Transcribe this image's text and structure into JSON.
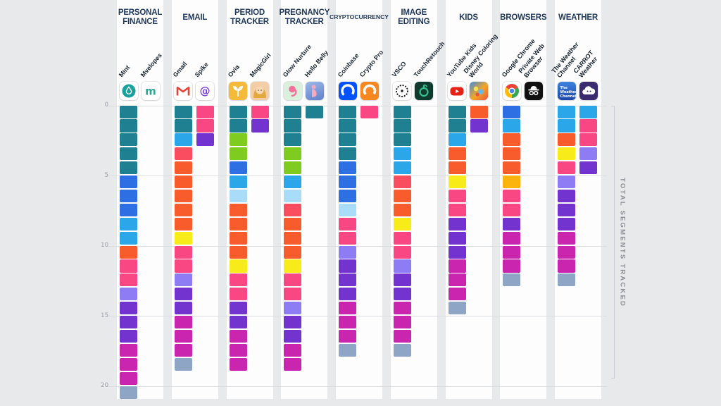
{
  "palette": {
    "teal": "#1E8090",
    "lime": "#7FCB1F",
    "royal": "#2E6FE4",
    "sky": "#2AA6E9",
    "pale": "#A8DCF8",
    "orange": "#F85C2D",
    "coral": "#FA4D60",
    "amber": "#FBB30D",
    "yellow": "#F7EC1A",
    "pink": "#F94784",
    "periwinkle": "#8D7CF3",
    "purple": "#7233CF",
    "magenta": "#CA25AE",
    "grayblue": "#8FA5C6"
  },
  "layout_colors": {
    "background": "#E8E9EB",
    "strip": "#FDFDFE",
    "gridline": "#DCDDE0",
    "title": "#20395C",
    "tick": "#9AA1AA",
    "axis_label": "#8B9097"
  },
  "axis": {
    "yticks": [
      "0",
      "5",
      "10",
      "15",
      "20"
    ],
    "right_label": "TOTAL SEGMENTS TRACKED"
  },
  "chart_data": {
    "type": "bar",
    "stacked": true,
    "unit": "1 square = 1 data segment tracked",
    "ylabel": "TOTAL SEGMENTS TRACKED",
    "ylim": [
      0,
      21
    ],
    "yticks": [
      0,
      5,
      10,
      15,
      20
    ],
    "grid": true,
    "legend": "none",
    "groups": [
      {
        "label": "PERSONAL FINANCE",
        "apps": [
          {
            "name": "Mint",
            "icon": "mint-icon",
            "total": 21,
            "segments": [
              "teal",
              "teal",
              "teal",
              "teal",
              "teal",
              "royal",
              "royal",
              "royal",
              "sky",
              "sky",
              "orange",
              "pink",
              "pink",
              "periwinkle",
              "purple",
              "purple",
              "purple",
              "magenta",
              "magenta",
              "magenta",
              "grayblue"
            ]
          },
          {
            "name": "Mvelopes",
            "icon": "mvelopes-icon",
            "total": 0,
            "segments": []
          }
        ]
      },
      {
        "label": "EMAIL",
        "apps": [
          {
            "name": "Gmail",
            "icon": "gmail-icon",
            "total": 19,
            "segments": [
              "teal",
              "teal",
              "sky",
              "coral",
              "orange",
              "orange",
              "orange",
              "orange",
              "orange",
              "yellow",
              "pink",
              "pink",
              "periwinkle",
              "purple",
              "purple",
              "magenta",
              "magenta",
              "magenta",
              "grayblue"
            ]
          },
          {
            "name": "Spike",
            "icon": "spike-icon",
            "total": 3,
            "segments": [
              "pink",
              "pink",
              "purple"
            ]
          }
        ]
      },
      {
        "label": "PERIOD TRACKER",
        "apps": [
          {
            "name": "Ovia",
            "icon": "ovia-icon",
            "total": 19,
            "segments": [
              "teal",
              "teal",
              "lime",
              "lime",
              "royal",
              "sky",
              "pale",
              "orange",
              "orange",
              "orange",
              "orange",
              "yellow",
              "pink",
              "pink",
              "purple",
              "purple",
              "magenta",
              "magenta",
              "magenta"
            ]
          },
          {
            "name": "MagicGirl",
            "icon": "magicgirl-icon",
            "total": 2,
            "segments": [
              "pink",
              "purple"
            ]
          }
        ]
      },
      {
        "label": "PREGNANCY TRACKER",
        "apps": [
          {
            "name": "Glow Nurture",
            "icon": "glow-nurture-icon",
            "total": 19,
            "segments": [
              "teal",
              "teal",
              "teal",
              "lime",
              "lime",
              "sky",
              "pale",
              "coral",
              "orange",
              "orange",
              "orange",
              "yellow",
              "pink",
              "pink",
              "periwinkle",
              "purple",
              "purple",
              "magenta",
              "magenta"
            ]
          },
          {
            "name": "Hello Belly",
            "icon": "hello-belly-icon",
            "total": 1,
            "segments": [
              "teal"
            ]
          }
        ]
      },
      {
        "label": "CRYPTOCURRENCY",
        "apps": [
          {
            "name": "Coinbase",
            "icon": "coinbase-icon",
            "total": 18,
            "segments": [
              "teal",
              "teal",
              "teal",
              "teal",
              "royal",
              "royal",
              "royal",
              "pale",
              "pink",
              "pink",
              "periwinkle",
              "purple",
              "purple",
              "purple",
              "magenta",
              "magenta",
              "magenta",
              "grayblue"
            ]
          },
          {
            "name": "Crypto Pro",
            "icon": "crypto-pro-icon",
            "total": 1,
            "segments": [
              "pink"
            ]
          }
        ]
      },
      {
        "label": "IMAGE EDITING",
        "apps": [
          {
            "name": "VSCO",
            "icon": "vsco-icon",
            "total": 18,
            "segments": [
              "teal",
              "teal",
              "teal",
              "sky",
              "sky",
              "coral",
              "orange",
              "orange",
              "yellow",
              "pink",
              "pink",
              "periwinkle",
              "purple",
              "purple",
              "magenta",
              "magenta",
              "magenta",
              "grayblue"
            ]
          },
          {
            "name": "TouchRetouch",
            "icon": "touchretouch-icon",
            "total": 0,
            "segments": []
          }
        ]
      },
      {
        "label": "KIDS",
        "apps": [
          {
            "name": "YouTube Kids",
            "icon": "youtube-kids-icon",
            "total": 15,
            "segments": [
              "teal",
              "teal",
              "sky",
              "orange",
              "orange",
              "yellow",
              "pink",
              "pink",
              "purple",
              "purple",
              "purple",
              "magenta",
              "magenta",
              "magenta",
              "grayblue"
            ]
          },
          {
            "name": "Disney Coloring World",
            "icon": "disney-coloring-world-icon",
            "total": 2,
            "segments": [
              "orange",
              "purple"
            ]
          }
        ]
      },
      {
        "label": "BROWSERS",
        "apps": [
          {
            "name": "Google Chrome",
            "icon": "google-chrome-icon",
            "total": 13,
            "segments": [
              "royal",
              "sky",
              "orange",
              "orange",
              "orange",
              "amber",
              "pink",
              "pink",
              "purple",
              "magenta",
              "magenta",
              "magenta",
              "grayblue"
            ]
          },
          {
            "name": "Private Web Browser",
            "icon": "private-web-browser-icon",
            "total": 0,
            "segments": []
          }
        ]
      },
      {
        "label": "WEATHER",
        "apps": [
          {
            "name": "The Weather Channel",
            "icon": "weather-channel-icon",
            "total": 13,
            "segments": [
              "sky",
              "sky",
              "orange",
              "yellow",
              "pink",
              "periwinkle",
              "purple",
              "purple",
              "purple",
              "magenta",
              "magenta",
              "magenta",
              "grayblue"
            ]
          },
          {
            "name": "CARROT Weather",
            "icon": "carrot-weather-icon",
            "total": 5,
            "segments": [
              "sky",
              "pink",
              "pink",
              "periwinkle",
              "purple"
            ]
          }
        ]
      }
    ]
  }
}
